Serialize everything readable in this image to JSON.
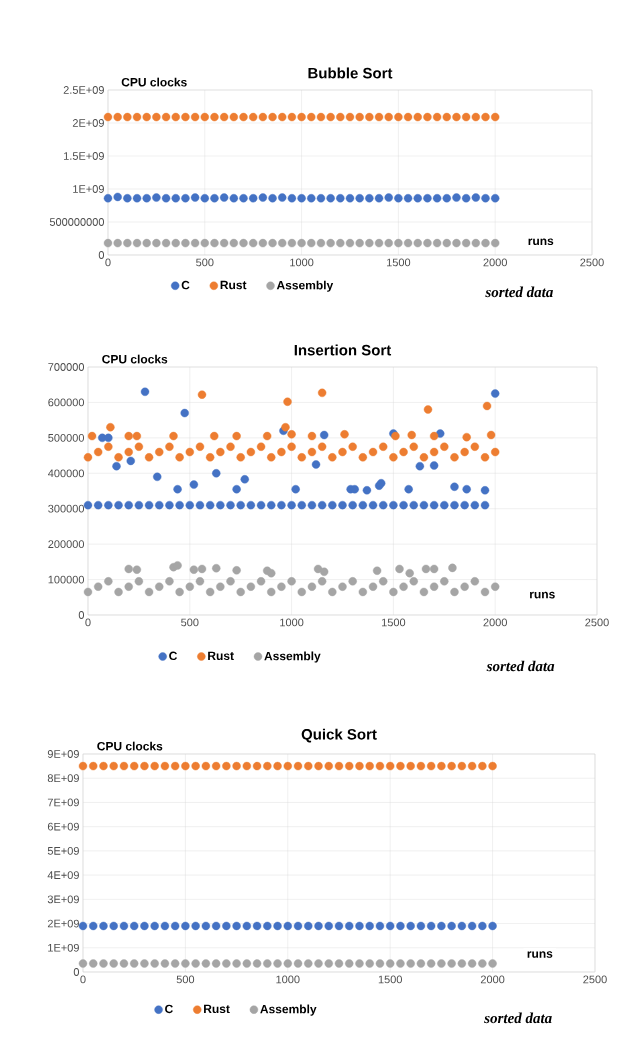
{
  "chart_data": [
    {
      "type": "scatter",
      "title": "Bubble Sort",
      "ylabel": "CPU clocks",
      "xlabel": "runs",
      "annotations": [
        "sorted data"
      ],
      "marker": "circle",
      "grid": true,
      "legend": "bottom",
      "x": [
        0,
        50,
        100,
        150,
        200,
        250,
        300,
        350,
        400,
        450,
        500,
        550,
        600,
        650,
        700,
        750,
        800,
        850,
        900,
        950,
        1000,
        1050,
        1100,
        1150,
        1200,
        1250,
        1300,
        1350,
        1400,
        1450,
        1500,
        1550,
        1600,
        1650,
        1700,
        1750,
        1800,
        1850,
        1900,
        1950,
        2000
      ],
      "xlim": [
        0,
        2500
      ],
      "xticks": [
        0,
        500,
        1000,
        1500,
        2000,
        2500
      ],
      "ylim": [
        0,
        2500000000
      ],
      "yticks": [
        0,
        {
          "value": 500000000,
          "label": "500000000"
        },
        {
          "value": 1000000000,
          "label": "1E+09"
        },
        {
          "value": 1500000000,
          "label": "1.5E+09"
        },
        {
          "value": 2000000000,
          "label": "2E+09"
        },
        {
          "value": 2500000000,
          "label": "2.5E+09"
        }
      ],
      "series": [
        {
          "name": "C",
          "color": "#4472c4",
          "values": [
            860000000,
            880000000,
            860000000,
            860000000,
            860000000,
            870000000,
            860000000,
            860000000,
            860000000,
            870000000,
            860000000,
            860000000,
            870000000,
            860000000,
            860000000,
            860000000,
            870000000,
            860000000,
            870000000,
            860000000,
            860000000,
            860000000,
            860000000,
            860000000,
            860000000,
            860000000,
            860000000,
            860000000,
            860000000,
            870000000,
            860000000,
            860000000,
            860000000,
            860000000,
            860000000,
            860000000,
            870000000,
            860000000,
            870000000,
            860000000,
            860000000
          ]
        },
        {
          "name": "Rust",
          "color": "#ed7d31",
          "values": [
            2090000000,
            2090000000,
            2090000000,
            2090000000,
            2090000000,
            2090000000,
            2090000000,
            2090000000,
            2090000000,
            2090000000,
            2090000000,
            2090000000,
            2090000000,
            2090000000,
            2090000000,
            2090000000,
            2090000000,
            2090000000,
            2090000000,
            2090000000,
            2090000000,
            2090000000,
            2090000000,
            2090000000,
            2090000000,
            2090000000,
            2090000000,
            2090000000,
            2090000000,
            2090000000,
            2090000000,
            2090000000,
            2090000000,
            2090000000,
            2090000000,
            2090000000,
            2090000000,
            2090000000,
            2090000000,
            2090000000,
            2090000000
          ]
        },
        {
          "name": "Assembly",
          "color": "#a5a5a5",
          "values": [
            180000000,
            180000000,
            180000000,
            180000000,
            180000000,
            180000000,
            180000000,
            180000000,
            180000000,
            180000000,
            180000000,
            180000000,
            180000000,
            180000000,
            180000000,
            180000000,
            180000000,
            180000000,
            180000000,
            180000000,
            180000000,
            180000000,
            180000000,
            180000000,
            180000000,
            180000000,
            180000000,
            180000000,
            180000000,
            180000000,
            180000000,
            180000000,
            180000000,
            180000000,
            180000000,
            180000000,
            180000000,
            180000000,
            180000000,
            180000000,
            180000000
          ]
        }
      ]
    },
    {
      "type": "scatter",
      "title": "Insertion Sort",
      "ylabel": "CPU clocks",
      "xlabel": "runs",
      "annotations": [
        "sorted data"
      ],
      "marker": "circle",
      "grid": true,
      "legend": "bottom",
      "xlim": [
        0,
        2500
      ],
      "xticks": [
        0,
        500,
        1000,
        1500,
        2000,
        2500
      ],
      "ylim": [
        0,
        700000
      ],
      "yticks": [
        0,
        100000,
        200000,
        300000,
        400000,
        500000,
        600000,
        700000
      ],
      "series": [
        {
          "name": "C",
          "color": "#4472c4",
          "x": [
            0,
            50,
            100,
            150,
            200,
            250,
            300,
            350,
            400,
            450,
            500,
            550,
            600,
            650,
            700,
            750,
            800,
            850,
            900,
            950,
            1000,
            1050,
            1100,
            1150,
            1200,
            1250,
            1300,
            1350,
            1400,
            1450,
            1500,
            1550,
            1600,
            1650,
            1700,
            1750,
            1800,
            1850,
            1900,
            1950,
            70,
            100,
            140,
            210,
            280,
            340,
            440,
            475,
            520,
            630,
            730,
            770,
            960,
            1020,
            1120,
            1160,
            1290,
            1310,
            1370,
            1430,
            1440,
            1500,
            1575,
            1630,
            1700,
            1730,
            1800,
            1860,
            1950,
            2000
          ],
          "values": [
            310000,
            310000,
            310000,
            310000,
            310000,
            310000,
            310000,
            310000,
            310000,
            310000,
            310000,
            310000,
            310000,
            310000,
            310000,
            310000,
            310000,
            310000,
            310000,
            310000,
            310000,
            310000,
            310000,
            310000,
            310000,
            310000,
            310000,
            310000,
            310000,
            310000,
            310000,
            310000,
            310000,
            310000,
            310000,
            310000,
            310000,
            310000,
            310000,
            310000,
            500000,
            500000,
            420000,
            435000,
            630000,
            390000,
            355000,
            570000,
            368000,
            400000,
            355000,
            383000,
            520000,
            355000,
            425000,
            508000,
            355000,
            355000,
            352000,
            365000,
            372000,
            512000,
            355000,
            420000,
            422000,
            512000,
            362000,
            355000,
            352000,
            625000
          ]
        },
        {
          "name": "Rust",
          "color": "#ed7d31",
          "x": [
            0,
            50,
            100,
            150,
            200,
            250,
            300,
            350,
            400,
            450,
            500,
            550,
            600,
            650,
            700,
            750,
            800,
            850,
            900,
            950,
            1000,
            1050,
            1100,
            1150,
            1200,
            1250,
            1300,
            1350,
            1400,
            1450,
            1500,
            1550,
            1600,
            1650,
            1700,
            1750,
            1800,
            1850,
            1900,
            1950,
            2000,
            20,
            110,
            200,
            240,
            420,
            560,
            620,
            730,
            880,
            970,
            980,
            1000,
            1100,
            1150,
            1260,
            1510,
            1590,
            1670,
            1700,
            1860,
            1960,
            1980
          ],
          "values": [
            445000,
            460000,
            475000,
            445000,
            460000,
            475000,
            445000,
            460000,
            475000,
            445000,
            460000,
            475000,
            445000,
            460000,
            475000,
            445000,
            460000,
            475000,
            445000,
            460000,
            475000,
            445000,
            460000,
            475000,
            445000,
            460000,
            475000,
            445000,
            460000,
            475000,
            445000,
            460000,
            475000,
            445000,
            460000,
            475000,
            445000,
            460000,
            475000,
            445000,
            460000,
            505000,
            530000,
            505000,
            505000,
            505000,
            622000,
            505000,
            505000,
            505000,
            530000,
            602000,
            510000,
            505000,
            627000,
            510000,
            505000,
            508000,
            580000,
            505000,
            502000,
            590000,
            508000
          ]
        },
        {
          "name": "Assembly",
          "color": "#a5a5a5",
          "x": [
            0,
            50,
            100,
            150,
            200,
            250,
            300,
            350,
            400,
            450,
            500,
            550,
            600,
            650,
            700,
            750,
            800,
            850,
            900,
            950,
            1000,
            1050,
            1100,
            1150,
            1200,
            1250,
            1300,
            1350,
            1400,
            1450,
            1500,
            1550,
            1600,
            1650,
            1700,
            1750,
            1800,
            1850,
            1900,
            1950,
            2000,
            200,
            240,
            420,
            440,
            520,
            560,
            630,
            730,
            880,
            900,
            1130,
            1160,
            1420,
            1530,
            1580,
            1660,
            1700,
            1790
          ],
          "values": [
            65000,
            80000,
            95000,
            65000,
            80000,
            95000,
            65000,
            80000,
            95000,
            65000,
            80000,
            95000,
            65000,
            80000,
            95000,
            65000,
            80000,
            95000,
            65000,
            80000,
            95000,
            65000,
            80000,
            95000,
            65000,
            80000,
            95000,
            65000,
            80000,
            95000,
            65000,
            80000,
            95000,
            65000,
            80000,
            95000,
            65000,
            80000,
            95000,
            65000,
            80000,
            130000,
            128000,
            135000,
            140000,
            128000,
            130000,
            132000,
            126000,
            125000,
            118000,
            130000,
            122000,
            125000,
            130000,
            118000,
            130000,
            130000,
            133000
          ]
        }
      ]
    },
    {
      "type": "scatter",
      "title": "Quick Sort",
      "ylabel": "CPU clocks",
      "xlabel": "runs",
      "annotations": [
        "sorted data"
      ],
      "marker": "circle",
      "grid": true,
      "legend": "bottom",
      "x": [
        0,
        50,
        100,
        150,
        200,
        250,
        300,
        350,
        400,
        450,
        500,
        550,
        600,
        650,
        700,
        750,
        800,
        850,
        900,
        950,
        1000,
        1050,
        1100,
        1150,
        1200,
        1250,
        1300,
        1350,
        1400,
        1450,
        1500,
        1550,
        1600,
        1650,
        1700,
        1750,
        1800,
        1850,
        1900,
        1950,
        2000
      ],
      "xlim": [
        0,
        2500
      ],
      "xticks": [
        0,
        500,
        1000,
        1500,
        2000,
        2500
      ],
      "ylim": [
        0,
        9000000000
      ],
      "yticks": [
        0,
        {
          "value": 1000000000,
          "label": "1E+09"
        },
        {
          "value": 2000000000,
          "label": "2E+09"
        },
        {
          "value": 3000000000,
          "label": "3E+09"
        },
        {
          "value": 4000000000,
          "label": "4E+09"
        },
        {
          "value": 5000000000,
          "label": "5E+09"
        },
        {
          "value": 6000000000,
          "label": "6E+09"
        },
        {
          "value": 7000000000,
          "label": "7E+09"
        },
        {
          "value": 8000000000,
          "label": "8E+09"
        },
        {
          "value": 9000000000,
          "label": "9E+09"
        }
      ],
      "series": [
        {
          "name": "C",
          "color": "#4472c4",
          "values": [
            1900000000,
            1900000000,
            1900000000,
            1900000000,
            1900000000,
            1900000000,
            1900000000,
            1900000000,
            1900000000,
            1900000000,
            1900000000,
            1900000000,
            1900000000,
            1900000000,
            1900000000,
            1900000000,
            1900000000,
            1900000000,
            1900000000,
            1900000000,
            1900000000,
            1900000000,
            1900000000,
            1900000000,
            1900000000,
            1900000000,
            1900000000,
            1900000000,
            1900000000,
            1900000000,
            1900000000,
            1900000000,
            1900000000,
            1900000000,
            1900000000,
            1900000000,
            1900000000,
            1900000000,
            1900000000,
            1900000000,
            1900000000
          ]
        },
        {
          "name": "Rust",
          "color": "#ed7d31",
          "values": [
            8500000000,
            8500000000,
            8500000000,
            8500000000,
            8500000000,
            8500000000,
            8500000000,
            8500000000,
            8500000000,
            8500000000,
            8500000000,
            8500000000,
            8500000000,
            8500000000,
            8500000000,
            8500000000,
            8500000000,
            8500000000,
            8500000000,
            8500000000,
            8500000000,
            8500000000,
            8500000000,
            8500000000,
            8500000000,
            8500000000,
            8500000000,
            8500000000,
            8500000000,
            8500000000,
            8500000000,
            8500000000,
            8500000000,
            8500000000,
            8500000000,
            8500000000,
            8500000000,
            8500000000,
            8500000000,
            8500000000,
            8500000000
          ]
        },
        {
          "name": "Assembly",
          "color": "#a5a5a5",
          "values": [
            350000000,
            350000000,
            350000000,
            350000000,
            350000000,
            350000000,
            350000000,
            350000000,
            350000000,
            350000000,
            350000000,
            350000000,
            350000000,
            350000000,
            350000000,
            350000000,
            350000000,
            350000000,
            350000000,
            350000000,
            350000000,
            350000000,
            350000000,
            350000000,
            350000000,
            350000000,
            350000000,
            350000000,
            350000000,
            350000000,
            350000000,
            350000000,
            350000000,
            350000000,
            350000000,
            350000000,
            350000000,
            350000000,
            350000000,
            350000000,
            350000000
          ]
        }
      ]
    }
  ]
}
